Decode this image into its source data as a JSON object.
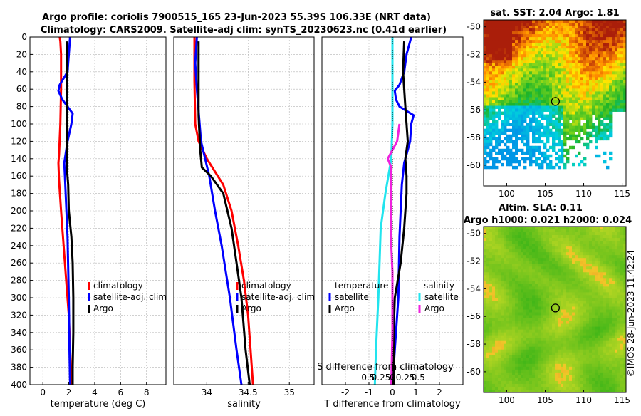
{
  "header": {
    "title_line1": "Argo profile: coriolis 7900515_165 23-Jun-2023 55.39S 106.33E (NRT data)",
    "title_line2": "Climatology: CARS2009. Satellite-adj clim: synTS_20230623.nc (0.41d earlier)"
  },
  "footer": {
    "credit": "©IMOS 28-Jun-2023 11:42:24"
  },
  "colors": {
    "climatology": "#ff0000",
    "satellite": "#0000ff",
    "argo": "#000000",
    "sal_satellite": "#22e4ee",
    "sal_argo": "#ee22dd",
    "grid": "#b4b4b4",
    "axis": "#000000"
  },
  "chart_data": [
    {
      "id": "temperature",
      "type": "line",
      "xlabel": "temperature (deg C)",
      "ylabel": "",
      "xlim": [
        -1,
        9.5
      ],
      "ylim": [
        400,
        0
      ],
      "xticks": [
        "0",
        "2",
        "4",
        "6",
        "8"
      ],
      "xtick_values": [
        0,
        2,
        4,
        6,
        8
      ],
      "yticks": [
        "0",
        "20",
        "40",
        "60",
        "80",
        "100",
        "120",
        "140",
        "160",
        "180",
        "200",
        "220",
        "240",
        "260",
        "280",
        "300",
        "320",
        "340",
        "360",
        "380",
        "400"
      ],
      "ytick_values": [
        0,
        20,
        40,
        60,
        80,
        100,
        120,
        140,
        160,
        180,
        200,
        220,
        240,
        260,
        280,
        300,
        320,
        340,
        360,
        380,
        400
      ],
      "grid": true,
      "legend_position": "lower-right",
      "series": [
        {
          "name": "climatology",
          "color": "#ff0000",
          "points": [
            [
              1.3,
              0
            ],
            [
              1.35,
              5
            ],
            [
              1.4,
              20
            ],
            [
              1.4,
              60
            ],
            [
              1.35,
              100
            ],
            [
              1.25,
              135
            ],
            [
              1.2,
              145
            ],
            [
              1.25,
              165
            ],
            [
              1.4,
              200
            ],
            [
              1.6,
              240
            ],
            [
              1.8,
              280
            ],
            [
              2.0,
              320
            ],
            [
              2.1,
              360
            ],
            [
              2.2,
              400
            ]
          ]
        },
        {
          "name": "satellite-adj. clim",
          "color": "#0000ff",
          "points": [
            [
              2.1,
              0
            ],
            [
              2.0,
              20
            ],
            [
              1.9,
              40
            ],
            [
              1.3,
              55
            ],
            [
              1.2,
              62
            ],
            [
              1.5,
              72
            ],
            [
              1.9,
              80
            ],
            [
              2.3,
              88
            ],
            [
              2.2,
              100
            ],
            [
              1.9,
              120
            ],
            [
              1.65,
              145
            ],
            [
              1.7,
              160
            ],
            [
              1.9,
              230
            ],
            [
              2.0,
              300
            ],
            [
              2.05,
              360
            ],
            [
              2.1,
              400
            ]
          ]
        },
        {
          "name": "Argo",
          "color": "#000000",
          "points": [
            [
              1.85,
              5
            ],
            [
              1.85,
              60
            ],
            [
              1.85,
              150
            ],
            [
              1.95,
              170
            ],
            [
              2.0,
              200
            ],
            [
              2.2,
              230
            ],
            [
              2.3,
              260
            ],
            [
              2.35,
              300
            ],
            [
              2.35,
              340
            ],
            [
              2.3,
              380
            ],
            [
              2.3,
              400
            ]
          ]
        }
      ],
      "legend": [
        "climatology",
        "satellite-adj. clim",
        "Argo"
      ]
    },
    {
      "id": "salinity",
      "type": "line",
      "xlabel": "salinity",
      "xlim": [
        33.6,
        35.3
      ],
      "ylim": [
        400,
        0
      ],
      "xticks": [
        "34",
        "34.5",
        "35"
      ],
      "xtick_values": [
        34,
        34.5,
        35
      ],
      "grid": true,
      "legend_position": "lower-right",
      "series": [
        {
          "name": "climatology",
          "color": "#ff0000",
          "points": [
            [
              33.85,
              0
            ],
            [
              33.85,
              50
            ],
            [
              33.86,
              100
            ],
            [
              33.9,
              120
            ],
            [
              34.0,
              140
            ],
            [
              34.1,
              155
            ],
            [
              34.2,
              170
            ],
            [
              34.3,
              200
            ],
            [
              34.38,
              240
            ],
            [
              34.45,
              280
            ],
            [
              34.5,
              320
            ],
            [
              34.53,
              360
            ],
            [
              34.56,
              400
            ]
          ]
        },
        {
          "name": "satellite-adj. clim",
          "color": "#0000ff",
          "points": [
            [
              33.88,
              0
            ],
            [
              33.86,
              30
            ],
            [
              33.88,
              60
            ],
            [
              33.93,
              120
            ],
            [
              34.03,
              160
            ],
            [
              34.1,
              200
            ],
            [
              34.18,
              240
            ],
            [
              34.28,
              300
            ],
            [
              34.36,
              360
            ],
            [
              34.42,
              400
            ]
          ]
        },
        {
          "name": "Argo",
          "color": "#000000",
          "points": [
            [
              33.9,
              5
            ],
            [
              33.9,
              90
            ],
            [
              33.92,
              130
            ],
            [
              33.94,
              150
            ],
            [
              34.05,
              160
            ],
            [
              34.2,
              180
            ],
            [
              34.3,
              220
            ],
            [
              34.36,
              260
            ],
            [
              34.42,
              300
            ],
            [
              34.47,
              360
            ],
            [
              34.52,
              400
            ]
          ]
        }
      ],
      "legend": [
        "climatology",
        "satellite-adj. clim",
        "Argo"
      ]
    },
    {
      "id": "difference",
      "type": "line",
      "xlabel": "T difference from climatology",
      "xlabel_top": "S difference from climatology",
      "xlim": [
        -3,
        3
      ],
      "ylim": [
        400,
        0
      ],
      "xticks": [
        "-2",
        "-1",
        "0",
        "1",
        "2"
      ],
      "xtick_values": [
        -2,
        -1,
        0,
        1,
        2
      ],
      "sticks": [
        "-0.5",
        "-0.25",
        "0",
        "0.25",
        "0.5"
      ],
      "stick_values": [
        -1.1,
        -0.55,
        0,
        0.55,
        1.1
      ],
      "grid": true,
      "legend_left_title": "temperature",
      "legend_right_title": "salinity",
      "series": [
        {
          "name": "T satellite",
          "color": "#0000ff",
          "points": [
            [
              0.8,
              0
            ],
            [
              0.6,
              20
            ],
            [
              0.5,
              40
            ],
            [
              0.3,
              55
            ],
            [
              0.1,
              62
            ],
            [
              0.15,
              72
            ],
            [
              0.3,
              80
            ],
            [
              0.9,
              90
            ],
            [
              0.8,
              100
            ],
            [
              0.75,
              120
            ],
            [
              0.5,
              145
            ],
            [
              0.4,
              170
            ],
            [
              0.3,
              230
            ],
            [
              0.25,
              300
            ],
            [
              0.1,
              360
            ],
            [
              0.0,
              400
            ]
          ]
        },
        {
          "name": "T Argo",
          "color": "#000000",
          "points": [
            [
              0.5,
              5
            ],
            [
              0.45,
              40
            ],
            [
              0.5,
              60
            ],
            [
              0.55,
              80
            ],
            [
              0.6,
              100
            ],
            [
              0.65,
              120
            ],
            [
              0.55,
              140
            ],
            [
              0.6,
              160
            ],
            [
              0.6,
              180
            ],
            [
              0.5,
              220
            ],
            [
              0.35,
              260
            ],
            [
              0.1,
              300
            ],
            [
              0.05,
              340
            ],
            [
              0.05,
              400
            ]
          ]
        },
        {
          "name": "S satellite",
          "color": "#22e4ee",
          "points": [
            [
              0.0,
              0
            ],
            [
              0.0,
              40
            ],
            [
              0.0,
              100
            ],
            [
              -0.05,
              140
            ],
            [
              -0.3,
              180
            ],
            [
              -0.5,
              220
            ],
            [
              -0.55,
              260
            ],
            [
              -0.6,
              300
            ],
            [
              -0.7,
              360
            ],
            [
              -0.75,
              400
            ]
          ]
        },
        {
          "name": "S Argo",
          "color": "#ee22dd",
          "points": [
            [
              0.3,
              100
            ],
            [
              0.2,
              120
            ],
            [
              -0.2,
              140
            ],
            [
              -0.05,
              150
            ],
            [
              -0.05,
              170
            ],
            [
              -0.05,
              200
            ],
            [
              -0.05,
              240
            ],
            [
              0.0,
              270
            ],
            [
              0.0,
              300
            ],
            [
              0.0,
              340
            ],
            [
              -0.05,
              400
            ]
          ]
        }
      ],
      "legend": [
        "satellite",
        "Argo"
      ]
    },
    {
      "id": "sst_map",
      "type": "heatmap",
      "title": "sat. SST: 2.04 Argo: 1.81",
      "xlim": [
        97,
        115.5
      ],
      "ylim": [
        -61.5,
        -49.5
      ],
      "xticks": [
        "100",
        "105",
        "110",
        "115"
      ],
      "xtick_values": [
        100,
        105,
        110,
        115
      ],
      "yticks": [
        "-50",
        "-52",
        "-54",
        "-56",
        "-58",
        "-60"
      ],
      "ytick_values": [
        -50,
        -52,
        -54,
        -56,
        -58,
        -60
      ],
      "argo_position": [
        106.33,
        -55.39
      ]
    },
    {
      "id": "sla_map",
      "type": "heatmap",
      "title_line1": "Altim. SLA: 0.11",
      "title_line2": "Argo h1000: 0.021 h2000: 0.024",
      "xlim": [
        97,
        115.5
      ],
      "ylim": [
        -61.5,
        -49.5
      ],
      "xticks": [
        "100",
        "105",
        "110",
        "115"
      ],
      "xtick_values": [
        100,
        105,
        110,
        115
      ],
      "yticks": [
        "-50",
        "-52",
        "-54",
        "-56",
        "-58",
        "-60"
      ],
      "ytick_values": [
        -50,
        -52,
        -54,
        -56,
        -58,
        -60
      ],
      "argo_position": [
        106.33,
        -55.39
      ]
    }
  ]
}
